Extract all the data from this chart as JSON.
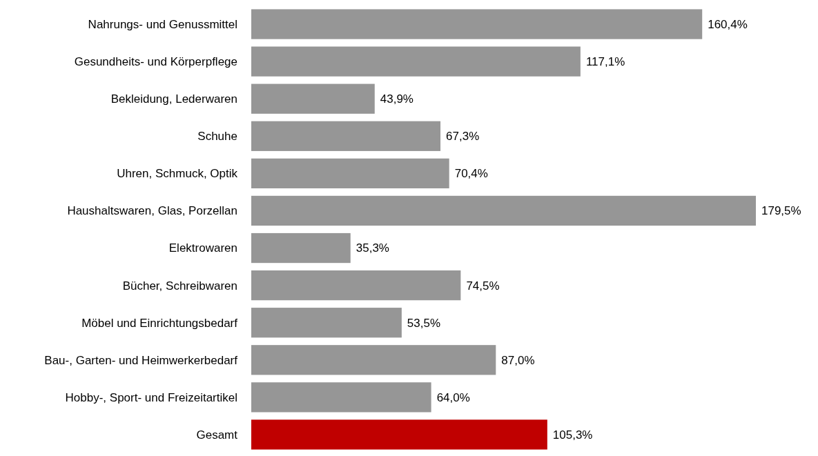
{
  "chart_data": {
    "type": "bar",
    "orientation": "horizontal",
    "categories": [
      "Nahrungs- und Genussmittel",
      "Gesundheits- und Körperpflege",
      "Bekleidung, Lederwaren",
      "Schuhe",
      "Uhren, Schmuck, Optik",
      "Haushaltswaren, Glas, Porzellan",
      "Elektrowaren",
      "Bücher, Schreibwaren",
      "Möbel und Einrichtungsbedarf",
      "Bau-, Garten- und Heimwerkerbedarf",
      "Hobby-, Sport- und Freizeitartikel",
      "Gesamt"
    ],
    "values": [
      160.4,
      117.1,
      43.9,
      67.3,
      70.4,
      179.5,
      35.3,
      74.5,
      53.5,
      87.0,
      64.0,
      105.3
    ],
    "value_labels": [
      "160,4%",
      "117,1%",
      "43,9%",
      "67,3%",
      "70,4%",
      "179,5%",
      "35,3%",
      "74,5%",
      "53,5%",
      "87,0%",
      "64,0%",
      "105,3%"
    ],
    "colors": [
      "#969696",
      "#969696",
      "#969696",
      "#969696",
      "#969696",
      "#969696",
      "#969696",
      "#969696",
      "#969696",
      "#969696",
      "#969696",
      "#c00000"
    ],
    "grid": false
  }
}
